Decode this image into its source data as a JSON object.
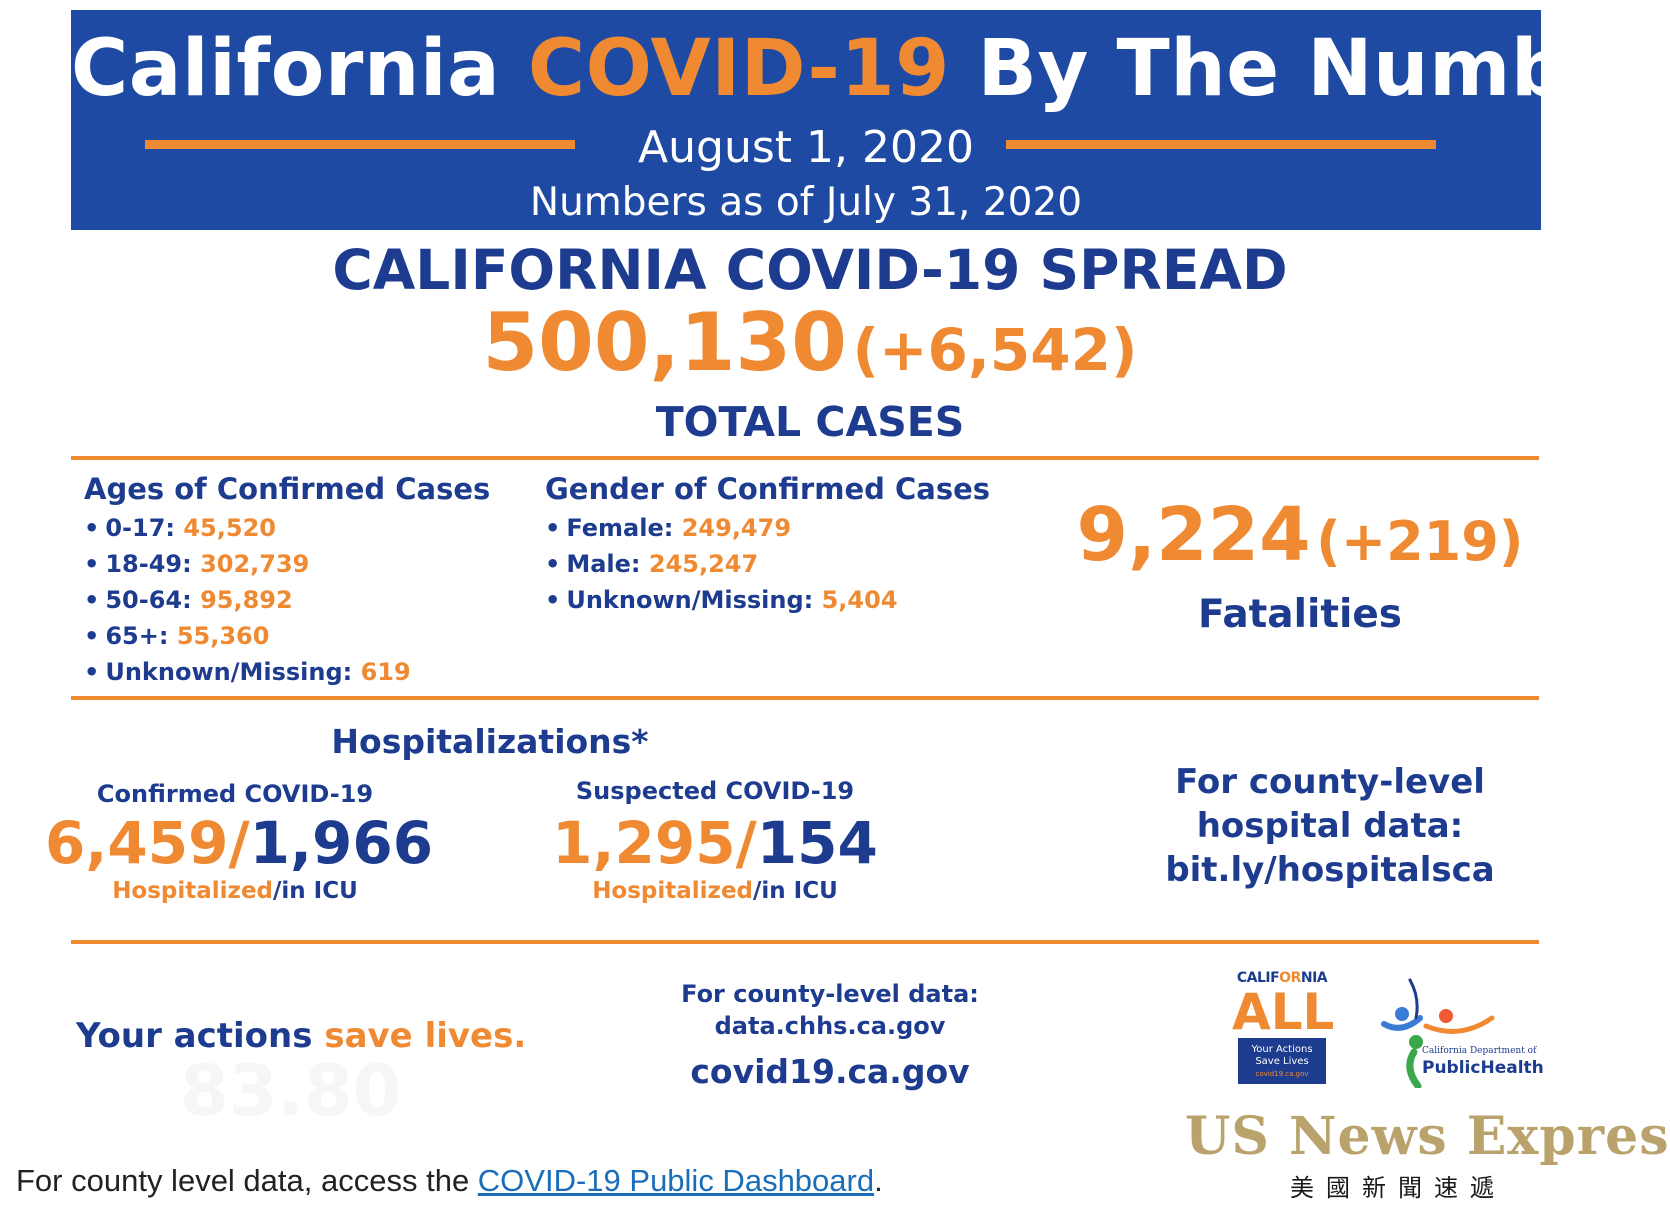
{
  "banner": {
    "title_part1": "California",
    "title_highlight": "COVID-19",
    "title_part2": "By The Numbers",
    "date": "August 1, 2020",
    "as_of": "Numbers as of July 31, 2020"
  },
  "spread": {
    "title": "CALIFORNIA COVID-19 SPREAD",
    "total": "500,130",
    "increase": "(+6,542)",
    "label": "TOTAL CASES"
  },
  "ages": {
    "heading": "Ages of Confirmed Cases",
    "items": [
      {
        "label": "0-17:",
        "value": "45,520"
      },
      {
        "label": "18-49:",
        "value": "302,739"
      },
      {
        "label": "50-64:",
        "value": "95,892"
      },
      {
        "label": "65+:",
        "value": "55,360"
      },
      {
        "label": "Unknown/Missing:",
        "value": "619"
      }
    ]
  },
  "gender": {
    "heading": "Gender of Confirmed Cases",
    "items": [
      {
        "label": "Female:",
        "value": "249,479"
      },
      {
        "label": "Male:",
        "value": "245,247"
      },
      {
        "label": "Unknown/Missing:",
        "value": "5,404"
      }
    ]
  },
  "fatalities": {
    "total": "9,224",
    "increase": "(+219)",
    "label": "Fatalities"
  },
  "hospitalizations": {
    "title": "Hospitalizations*",
    "confirmed": {
      "heading": "Confirmed COVID-19",
      "hospitalized": "6,459",
      "icu": "1,966",
      "sub_hosp": "Hospitalized",
      "sub_icu": "/in ICU"
    },
    "suspected": {
      "heading": "Suspected COVID-19",
      "hospitalized": "1,295",
      "icu": "154",
      "sub_hosp": "Hospitalized",
      "sub_icu": "/in ICU"
    },
    "county_line1": "For county-level",
    "county_line2": "hospital data:",
    "county_link": "bit.ly/hospitalsca"
  },
  "footer": {
    "actions_part1": "Your actions",
    "actions_part2": "save lives.",
    "ghost_text": "83.80",
    "county_data_label": "For county-level data:",
    "county_data_site": "data.chhs.ca.gov",
    "main_site": "covid19.ca.gov"
  },
  "logos": {
    "ca_small_1": "CALIF",
    "ca_small_2": "OR",
    "ca_small_3": "NIA",
    "ca_all": "ALL",
    "ca_box_1": "Your Actions",
    "ca_box_2": "Save Lives",
    "ca_box_url": "covid19.ca.gov",
    "cdph_small": "California Department of",
    "cdph_main": "PublicHealth"
  },
  "page_text": {
    "prefix": "For county level data, access the ",
    "link": "COVID-19 Public Dashboard",
    "suffix": "."
  },
  "watermark": {
    "main": "US News Express",
    "sub": "美國新聞速遞"
  },
  "colors": {
    "navy": "#1d3c8f",
    "banner_blue": "#1f4aa3",
    "orange": "#ef8a32",
    "link_blue": "#1a6db8"
  }
}
